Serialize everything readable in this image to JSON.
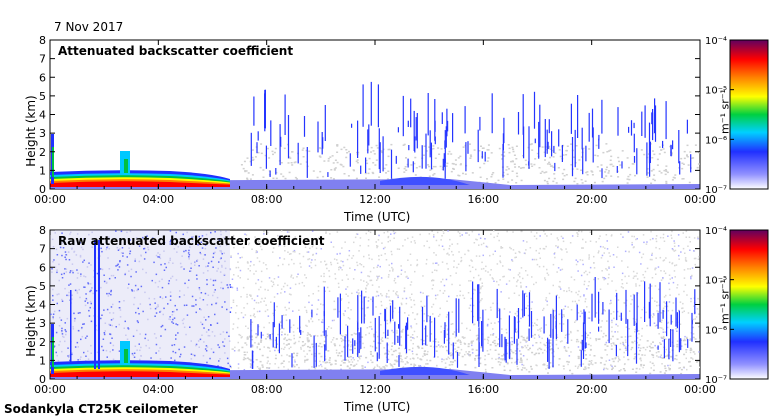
{
  "date": "7 Nov 2017",
  "footer": "Sodankyla CT25K ceilometer",
  "chart_data": [
    {
      "type": "heatmap",
      "title": "Attenuated backscatter coefficient",
      "xlabel": "Time (UTC)",
      "ylabel": "Height (km)",
      "x_ticks": [
        "00:00",
        "04:00",
        "08:00",
        "12:00",
        "16:00",
        "20:00",
        "00:00"
      ],
      "y_ticks": [
        "0",
        "1",
        "2",
        "3",
        "4",
        "5",
        "6",
        "7",
        "8"
      ],
      "ylim": [
        0,
        8
      ],
      "colorbar": {
        "label": "m⁻¹ sr⁻¹",
        "ticks": [
          "10⁻⁴",
          "10⁻⁵",
          "10⁻⁶",
          "10⁻⁷"
        ],
        "scale": "log",
        "range": [
          1e-07,
          0.0001
        ]
      }
    },
    {
      "type": "heatmap",
      "title": "Raw attenuated backscatter coefficient",
      "xlabel": "Time (UTC)",
      "ylabel": "Height (km)",
      "x_ticks": [
        "00:00",
        "04:00",
        "08:00",
        "12:00",
        "16:00",
        "20:00",
        "00:00"
      ],
      "y_ticks": [
        "0",
        "1",
        "2",
        "3",
        "4",
        "5",
        "6",
        "7",
        "8"
      ],
      "ylim": [
        0,
        8
      ],
      "colorbar": {
        "label": "m⁻¹ sr⁻¹",
        "ticks": [
          "10⁻⁴",
          "10⁻⁵",
          "10⁻⁶",
          "10⁻⁷"
        ],
        "scale": "log",
        "range": [
          1e-07,
          0.0001
        ]
      }
    }
  ]
}
